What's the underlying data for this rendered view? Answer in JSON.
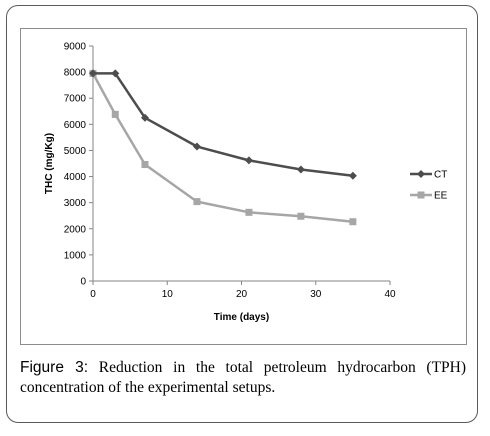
{
  "caption": {
    "label": "Figure 3:",
    "text": " Reduction in the total petroleum hydrocarbon (TPH) concentration of the experimental setups."
  },
  "chart_data": {
    "type": "line",
    "xlabel": "Time (days)",
    "ylabel": "THC (mg/Kg)",
    "xlim": [
      0,
      40
    ],
    "ylim": [
      0,
      9000
    ],
    "xticks": [
      "0",
      "10",
      "20",
      "30",
      "40"
    ],
    "yticks": [
      "0",
      "1000",
      "2000",
      "3000",
      "4000",
      "5000",
      "6000",
      "7000",
      "8000",
      "9000"
    ],
    "grid": false,
    "legend": "right",
    "series": [
      {
        "name": "CT",
        "color": "#4d4d4d",
        "marker": "diamond",
        "x": [
          0,
          3,
          7,
          14,
          21,
          28,
          35
        ],
        "y": [
          7950,
          7950,
          6250,
          5150,
          4620,
          4270,
          4030
        ]
      },
      {
        "name": "EE",
        "color": "#a6a6a6",
        "marker": "square",
        "x": [
          0,
          3,
          7,
          14,
          21,
          28,
          35
        ],
        "y": [
          7950,
          6380,
          4460,
          3040,
          2630,
          2480,
          2270
        ]
      }
    ]
  }
}
